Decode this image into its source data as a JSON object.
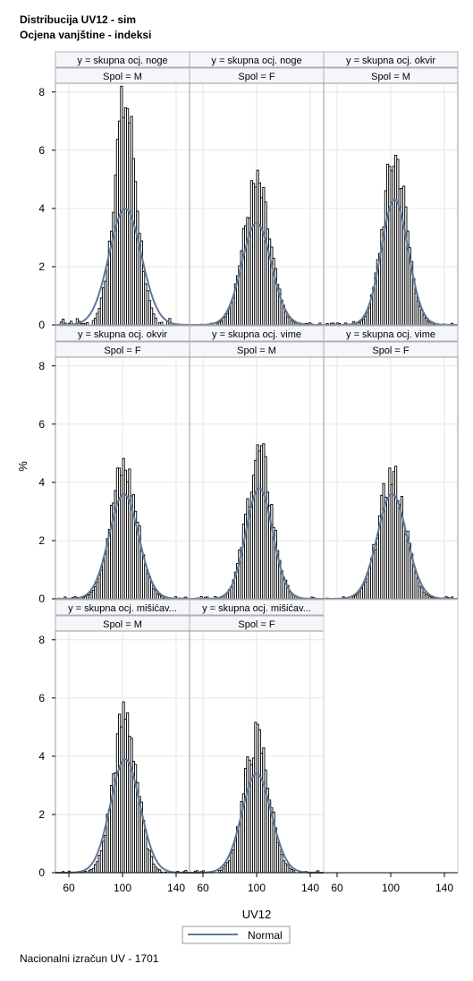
{
  "titles": {
    "line1": "Distribucija UV12 - sim",
    "line2": "Ocjena vanjštine - indeksi"
  },
  "footnote": "Nacionalni izračun UV - 1701",
  "colors": {
    "normal_curve": "#60789a",
    "bar_fill": "#ffffff",
    "bar_stroke": "#000000",
    "header_fill": "#f4f6fb",
    "grid": "#e6e6e6"
  },
  "chart_data": {
    "type": "bar",
    "xlabel": "UV12",
    "ylabel": "%",
    "xlim": [
      50,
      150
    ],
    "ylim": [
      0,
      8.3
    ],
    "xticks": [
      60,
      100,
      140
    ],
    "yticks": [
      0,
      2,
      4,
      6,
      8
    ],
    "grid": true,
    "legend": {
      "position": "bottom-center",
      "entries": [
        "Normal"
      ]
    },
    "panels": [
      {
        "y": "y = skupna ocj. noge",
        "spol": "Spol = M",
        "histogram": {
          "bin_width": 1.5,
          "mean": 102,
          "sd": 8.5,
          "peak": 7.6,
          "tail_level": 0.15
        },
        "normal": {
          "mean": 102,
          "sd": 12,
          "peak": 4.0
        }
      },
      {
        "y": "y = skupna ocj. noge",
        "spol": "Spol = F",
        "histogram": {
          "bin_width": 1.5,
          "mean": 100,
          "sd": 10,
          "peak": 4.75,
          "tail_level": 0.05
        },
        "normal": {
          "mean": 100,
          "sd": 11,
          "peak": 3.5
        }
      },
      {
        "y": "y = skupna ocj. okvir",
        "spol": "Spol = M",
        "histogram": {
          "bin_width": 1.5,
          "mean": 103,
          "sd": 9,
          "peak": 5.75,
          "tail_level": 0.08
        },
        "normal": {
          "mean": 103,
          "sd": 10,
          "peak": 4.3
        }
      },
      {
        "y": "y = skupna ocj. okvir",
        "spol": "Spol = F",
        "histogram": {
          "bin_width": 1.5,
          "mean": 101,
          "sd": 10,
          "peak": 4.5,
          "tail_level": 0.05
        },
        "normal": {
          "mean": 101,
          "sd": 11,
          "peak": 3.6
        }
      },
      {
        "y": "y = skupna ocj. vime",
        "spol": "Spol = M",
        "histogram": {
          "bin_width": 1.5,
          "mean": 102,
          "sd": 9.5,
          "peak": 4.95,
          "tail_level": 0.05
        },
        "normal": {
          "mean": 102,
          "sd": 10,
          "peak": 3.8
        }
      },
      {
        "y": "y = skupna ocj. vime",
        "spol": "Spol = F",
        "histogram": {
          "bin_width": 1.5,
          "mean": 101,
          "sd": 10,
          "peak": 4.2,
          "tail_level": 0.05
        },
        "normal": {
          "mean": 101,
          "sd": 11,
          "peak": 3.6
        }
      },
      {
        "y": "y = skupna ocj. mišićav...",
        "spol": "Spol = M",
        "histogram": {
          "bin_width": 1.5,
          "mean": 102,
          "sd": 9,
          "peak": 5.4,
          "tail_level": 0.05
        },
        "normal": {
          "mean": 102,
          "sd": 11,
          "peak": 3.9
        }
      },
      {
        "y": "y = skupna ocj. mišićav...",
        "spol": "Spol = F",
        "histogram": {
          "bin_width": 1.5,
          "mean": 100,
          "sd": 9.5,
          "peak": 4.6,
          "tail_level": 0.05
        },
        "normal": {
          "mean": 100,
          "sd": 11,
          "peak": 3.4
        }
      }
    ]
  }
}
